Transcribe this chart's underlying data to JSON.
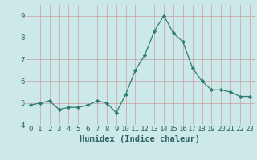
{
  "x": [
    0,
    1,
    2,
    3,
    4,
    5,
    6,
    7,
    8,
    9,
    10,
    11,
    12,
    13,
    14,
    15,
    16,
    17,
    18,
    19,
    20,
    21,
    22,
    23
  ],
  "y": [
    4.9,
    5.0,
    5.1,
    4.7,
    4.8,
    4.8,
    4.9,
    5.1,
    5.0,
    4.55,
    5.4,
    6.5,
    7.2,
    8.3,
    9.0,
    8.2,
    7.8,
    6.6,
    6.0,
    5.6,
    5.6,
    5.5,
    5.3,
    5.3
  ],
  "line_color": "#2e7d6e",
  "marker": "D",
  "marker_size": 2.2,
  "bg_color": "#cce8e8",
  "grid_color": "#c8a0a0",
  "xlabel": "Humidex (Indice chaleur)",
  "ylim": [
    4.0,
    9.5
  ],
  "xlim": [
    -0.5,
    23.5
  ],
  "yticks": [
    4,
    5,
    6,
    7,
    8,
    9
  ],
  "xticks": [
    0,
    1,
    2,
    3,
    4,
    5,
    6,
    7,
    8,
    9,
    10,
    11,
    12,
    13,
    14,
    15,
    16,
    17,
    18,
    19,
    20,
    21,
    22,
    23
  ],
  "font_color": "#2e6060",
  "tick_label_size": 6.5,
  "xlabel_size": 7.5
}
